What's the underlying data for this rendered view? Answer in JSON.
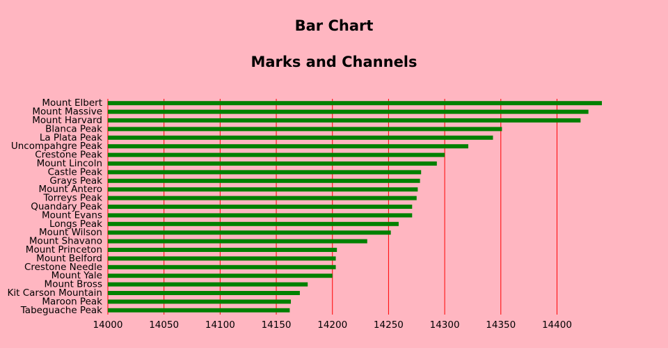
{
  "chart_data": {
    "type": "bar",
    "orientation": "horizontal",
    "title": "Bar Chart",
    "subtitle": "Marks and Channels",
    "categories": [
      "Mount Elbert",
      "Mount Massive",
      "Mount Harvard",
      "Blanca Peak",
      "La Plata Peak",
      "Uncompahgre Peak",
      "Crestone Peak",
      "Mount Lincoln",
      "Castle Peak",
      "Grays Peak",
      "Mount Antero",
      "Torreys Peak",
      "Quandary Peak",
      "Mount Evans",
      "Longs Peak",
      "Mount Wilson",
      "Mount Shavano",
      "Mount Princeton",
      "Mount Belford",
      "Crestone Needle",
      "Mount Yale",
      "Mount Bross",
      "Kit Carson Mountain",
      "Maroon Peak",
      "Tabeguache Peak"
    ],
    "values": [
      14440,
      14428,
      14421,
      14351,
      14343,
      14321,
      14300,
      14293,
      14279,
      14278,
      14276,
      14275,
      14271,
      14271,
      14259,
      14252,
      14231,
      14204,
      14203,
      14203,
      14200,
      14178,
      14171,
      14163,
      14162
    ],
    "color": "#008000",
    "grid_color": "#ff0000",
    "xlim": [
      14000,
      14440
    ],
    "xticks": [
      14000,
      14050,
      14100,
      14150,
      14200,
      14250,
      14300,
      14350,
      14400
    ],
    "grid": true
  }
}
